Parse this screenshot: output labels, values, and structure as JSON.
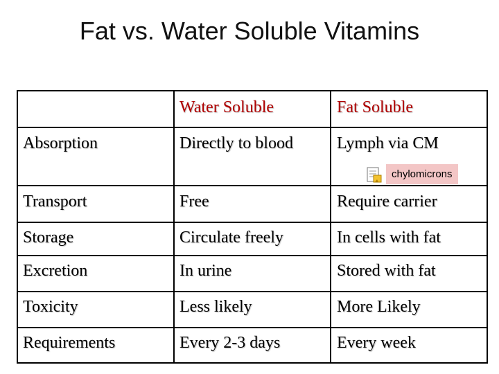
{
  "title": "Fat vs. Water Soluble Vitamins",
  "table": {
    "header": [
      "",
      "Water Soluble",
      "Fat Soluble"
    ],
    "rows": [
      [
        "Absorption",
        "Directly to blood",
        "Lymph via CM"
      ],
      [
        "Transport",
        "Free",
        "Require carrier"
      ],
      [
        "Storage",
        "Circulate freely",
        "In cells with fat"
      ],
      [
        "Excretion",
        "In urine",
        "Stored with fat"
      ],
      [
        "Toxicity",
        "Less likely",
        "More Likely"
      ],
      [
        "Requirements",
        "Every 2-3 days",
        "Every week"
      ]
    ]
  },
  "comment": {
    "text": "chylomicrons",
    "icon": "comment-note-icon"
  },
  "colors": {
    "header_text": "#b00000",
    "comment_bg": "#f3c6c6"
  }
}
